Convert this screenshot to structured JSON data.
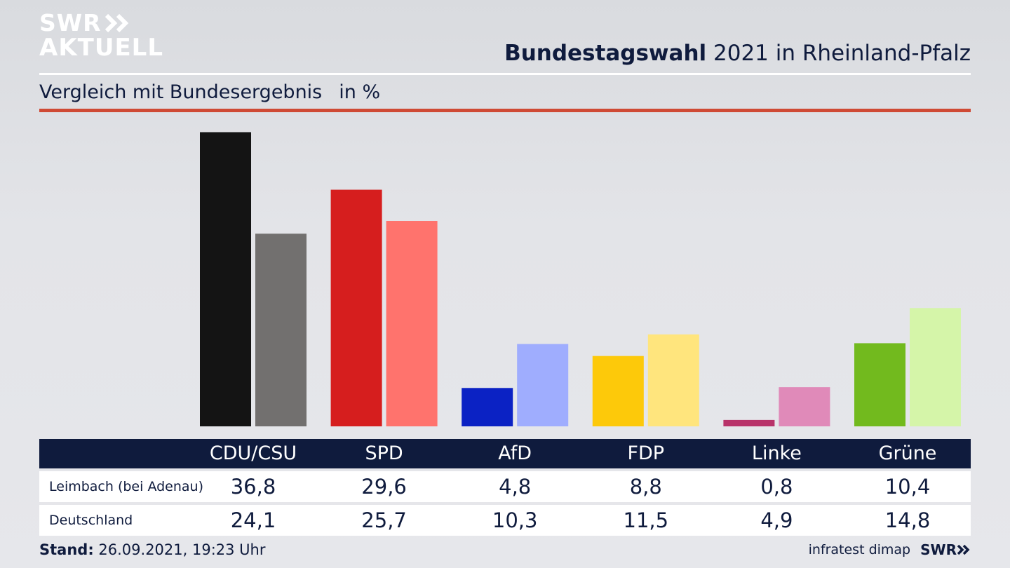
{
  "logo": {
    "line1": "SWR",
    "line2": "AKTUELL"
  },
  "header": {
    "title_bold": "Bundestagswahl",
    "title_rest": " 2021 in Rheinland-Pfalz",
    "subtitle": "Vergleich mit Bundesergebnis",
    "unit": "in %"
  },
  "chart_data": {
    "type": "bar",
    "title": "Bundestagswahl 2021 in Rheinland-Pfalz",
    "subtitle": "Vergleich mit Bundesergebnis",
    "unit": "in %",
    "categories": [
      "CDU/CSU",
      "SPD",
      "AfD",
      "FDP",
      "Linke",
      "Grüne"
    ],
    "series": [
      {
        "name": "Leimbach (bei Adenau)",
        "values": [
          36.8,
          29.6,
          4.8,
          8.8,
          0.8,
          10.4
        ],
        "labels": [
          "36,8",
          "29,6",
          "4,8",
          "8,8",
          "0,8",
          "10,4"
        ],
        "colors": [
          "#141414",
          "#d61e1e",
          "#0b22c4",
          "#fdc90a",
          "#b8336a",
          "#72ba1e"
        ]
      },
      {
        "name": "Deutschland",
        "values": [
          24.1,
          25.7,
          10.3,
          11.5,
          4.9,
          14.8
        ],
        "labels": [
          "24,1",
          "25,7",
          "10,3",
          "11,5",
          "4,9",
          "14,8"
        ],
        "colors": [
          "#72706f",
          "#ff736d",
          "#9fadfe",
          "#ffe57d",
          "#e08ab9",
          "#d5f5a9"
        ]
      }
    ],
    "ylim": [
      0,
      37
    ],
    "grid": false,
    "legend": "table-below"
  },
  "footer": {
    "stand_label": "Stand:",
    "stand_value": " 26.09.2021, 19:23 Uhr",
    "source": "infratest dimap",
    "brand": "SWR"
  }
}
